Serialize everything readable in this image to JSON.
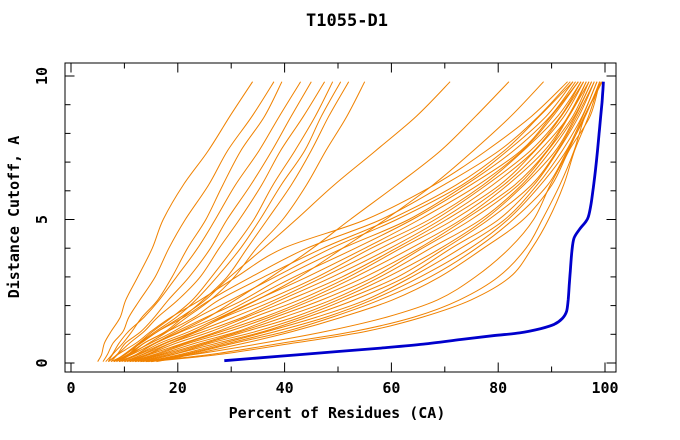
{
  "title": "T1055-D1",
  "colors": {
    "model_line": "#f08200",
    "best_model_line": "#0000cc",
    "axis": "#000000",
    "background": "#ffffff"
  },
  "chart_data": {
    "type": "line",
    "title": "T1055-D1",
    "xlabel": "Percent of Residues (CA)",
    "ylabel": "Distance Cutoff, A",
    "xlim": [
      0,
      100
    ],
    "ylim": [
      0,
      10
    ],
    "grid": false,
    "legend": "none",
    "x_axis": {
      "major_ticks": [
        0,
        20,
        40,
        60,
        80,
        100
      ],
      "minor_tick_step": 10
    },
    "y_axis": {
      "major_ticks": [
        0,
        5,
        10
      ],
      "minor_tick_step": 1
    },
    "series": [
      {
        "name": "predicted-models",
        "color": "#f08200",
        "style": "thin"
      },
      {
        "name": "best-model",
        "color": "#0000cc",
        "style": "thick"
      }
    ],
    "model_y_levels": [
      0.05,
      0.3,
      0.7,
      1.1,
      1.6,
      2.2,
      3.0,
      4.0,
      5.0,
      6.2,
      7.4,
      8.6,
      9.8
    ],
    "model_x_values": [
      [
        5,
        5.5,
        6.5,
        7.5,
        9,
        10.5,
        12.5,
        15,
        17.5,
        21,
        25.5,
        30,
        34
      ],
      [
        6,
        7,
        8,
        9.5,
        11,
        13,
        15.5,
        18.5,
        21.5,
        25.5,
        29.5,
        34,
        38
      ],
      [
        7,
        8,
        9.5,
        11.5,
        13.5,
        16,
        19,
        22,
        25,
        28.5,
        32,
        36,
        39.5
      ],
      [
        6.5,
        7.5,
        9,
        11,
        13.5,
        16.5,
        20,
        23.5,
        27,
        31,
        35,
        39,
        43
      ],
      [
        7,
        8.5,
        10.5,
        13,
        15.5,
        18.5,
        22,
        26,
        29.5,
        33.5,
        37.5,
        41.5,
        45
      ],
      [
        7.5,
        9,
        11,
        13.5,
        16.5,
        20,
        24,
        28,
        31.5,
        35.5,
        39.5,
        43.5,
        47.5
      ],
      [
        8,
        10,
        12.5,
        15.5,
        19,
        22.5,
        26.5,
        30.5,
        34,
        38,
        42,
        45.5,
        49
      ],
      [
        8,
        10.5,
        13,
        16,
        19.5,
        23.5,
        27.5,
        31.5,
        35.5,
        39.5,
        43.5,
        47,
        50.5
      ],
      [
        8.5,
        11,
        14,
        17.5,
        21,
        25,
        29,
        33,
        37,
        41,
        45,
        48.5,
        52
      ],
      [
        9,
        11.5,
        14.5,
        18,
        22,
        26,
        30.5,
        35,
        39.5,
        44,
        48,
        51.5,
        55
      ],
      [
        8,
        10,
        13,
        16.5,
        20.5,
        25,
        30,
        36,
        42,
        49.5,
        57,
        64.5,
        71
      ],
      [
        9,
        12,
        16,
        20.5,
        25.5,
        31,
        37.5,
        45,
        52.5,
        61,
        69,
        76,
        82
      ],
      [
        10,
        13.5,
        18,
        23,
        28.5,
        35,
        42.5,
        51,
        59,
        67.5,
        75.5,
        82.5,
        88.5
      ],
      [
        7,
        9,
        12,
        15,
        19,
        24,
        31,
        40,
        55,
        68,
        78,
        86,
        93
      ],
      [
        7.5,
        10,
        13,
        16.5,
        21,
        26,
        34,
        44,
        58,
        70,
        80,
        87.5,
        93.5
      ],
      [
        8,
        10.5,
        14,
        18,
        23,
        28,
        36,
        47,
        60,
        72,
        81,
        88,
        94
      ],
      [
        8,
        11,
        15,
        19,
        24,
        30,
        38,
        49,
        61,
        73,
        82,
        89,
        94
      ],
      [
        8.5,
        11.5,
        15.5,
        20,
        25.5,
        32,
        40,
        51,
        63,
        74,
        83,
        89.5,
        94.5
      ],
      [
        9,
        12,
        16,
        21,
        27,
        33.5,
        42,
        53,
        64,
        75,
        84,
        90,
        95
      ],
      [
        9,
        12.5,
        17,
        22,
        28,
        35,
        44,
        55,
        65.5,
        76,
        84.5,
        90.5,
        95
      ],
      [
        9.5,
        13,
        17.5,
        23,
        29,
        36.5,
        46,
        56.5,
        67,
        77,
        85,
        91,
        95.5
      ],
      [
        10,
        13.5,
        18.5,
        24,
        30.5,
        38,
        47.5,
        58,
        68,
        78,
        86,
        91.5,
        95.5
      ],
      [
        10,
        14,
        19,
        25,
        32,
        39.5,
        49,
        59.5,
        69.5,
        79,
        86.5,
        92,
        96
      ],
      [
        10.5,
        14.5,
        20,
        26,
        33,
        41,
        50.5,
        61,
        70.5,
        80,
        87,
        92.5,
        96
      ],
      [
        11,
        15,
        21,
        27.5,
        34.5,
        42.5,
        52,
        62,
        71.5,
        81,
        88,
        93,
        96.5
      ],
      [
        11,
        15.5,
        21.5,
        28.5,
        36,
        44,
        53.5,
        63.5,
        73,
        82,
        88.5,
        93,
        96.5
      ],
      [
        11.5,
        16,
        22.5,
        29.5,
        37,
        45.5,
        55,
        65,
        74,
        83,
        89,
        93.5,
        97
      ],
      [
        12,
        17,
        23.5,
        31,
        38.5,
        47,
        56.5,
        66,
        75,
        83.5,
        89.5,
        94,
        97
      ],
      [
        12,
        17.5,
        24.5,
        32,
        40,
        48.5,
        58,
        67.5,
        76.5,
        84.5,
        90,
        94,
        97.5
      ],
      [
        12.5,
        18,
        25.5,
        33,
        41.5,
        50,
        59.5,
        69,
        77.5,
        85,
        90.5,
        94.5,
        97.5
      ],
      [
        13,
        19,
        26.5,
        34.5,
        43,
        51.5,
        61,
        70,
        78.5,
        86,
        91,
        95,
        98
      ],
      [
        13.5,
        19.5,
        27.5,
        36,
        44.5,
        53,
        62.5,
        71.5,
        80,
        86.5,
        91.5,
        95,
        98
      ],
      [
        14,
        20.5,
        28.5,
        37,
        46,
        55,
        64,
        73,
        81,
        87.5,
        92,
        95.5,
        98.5
      ],
      [
        14.5,
        21,
        30,
        38.5,
        47.5,
        56.5,
        65.5,
        74.5,
        82,
        88,
        92.5,
        96,
        98.5
      ],
      [
        15,
        22,
        31,
        40,
        49,
        58,
        67,
        76,
        83,
        89,
        93,
        96.5,
        99
      ],
      [
        16,
        23,
        32.5,
        41.5,
        51,
        60,
        69,
        77.5,
        84.5,
        90,
        93.5,
        97,
        99
      ],
      [
        13,
        23,
        36,
        48,
        59,
        68.5,
        76,
        82,
        86.5,
        90,
        93,
        96,
        99.3
      ],
      [
        14,
        26,
        40,
        53,
        64,
        73,
        80,
        85,
        88.5,
        91.5,
        94,
        96.5,
        99.5
      ],
      [
        15,
        28,
        42,
        55,
        66,
        75,
        82,
        86.5,
        89.5,
        92,
        94.5,
        97,
        99
      ]
    ],
    "best_model_points": [
      [
        28.7,
        0.08
      ],
      [
        34,
        0.16
      ],
      [
        42,
        0.28
      ],
      [
        50,
        0.4
      ],
      [
        58,
        0.52
      ],
      [
        66,
        0.66
      ],
      [
        73,
        0.82
      ],
      [
        79,
        0.95
      ],
      [
        84,
        1.05
      ],
      [
        88,
        1.2
      ],
      [
        90.5,
        1.35
      ],
      [
        92,
        1.55
      ],
      [
        92.8,
        1.8
      ],
      [
        93.1,
        2.2
      ],
      [
        93.3,
        2.7
      ],
      [
        93.5,
        3.2
      ],
      [
        93.8,
        3.9
      ],
      [
        94.2,
        4.35
      ],
      [
        95.2,
        4.65
      ],
      [
        96.3,
        4.9
      ],
      [
        96.9,
        5.1
      ],
      [
        97.4,
        5.55
      ],
      [
        97.8,
        6.1
      ],
      [
        98.2,
        6.7
      ],
      [
        98.6,
        7.4
      ],
      [
        98.9,
        8.0
      ],
      [
        99.2,
        8.6
      ],
      [
        99.45,
        9.1
      ],
      [
        99.6,
        9.5
      ],
      [
        99.7,
        9.8
      ]
    ]
  }
}
